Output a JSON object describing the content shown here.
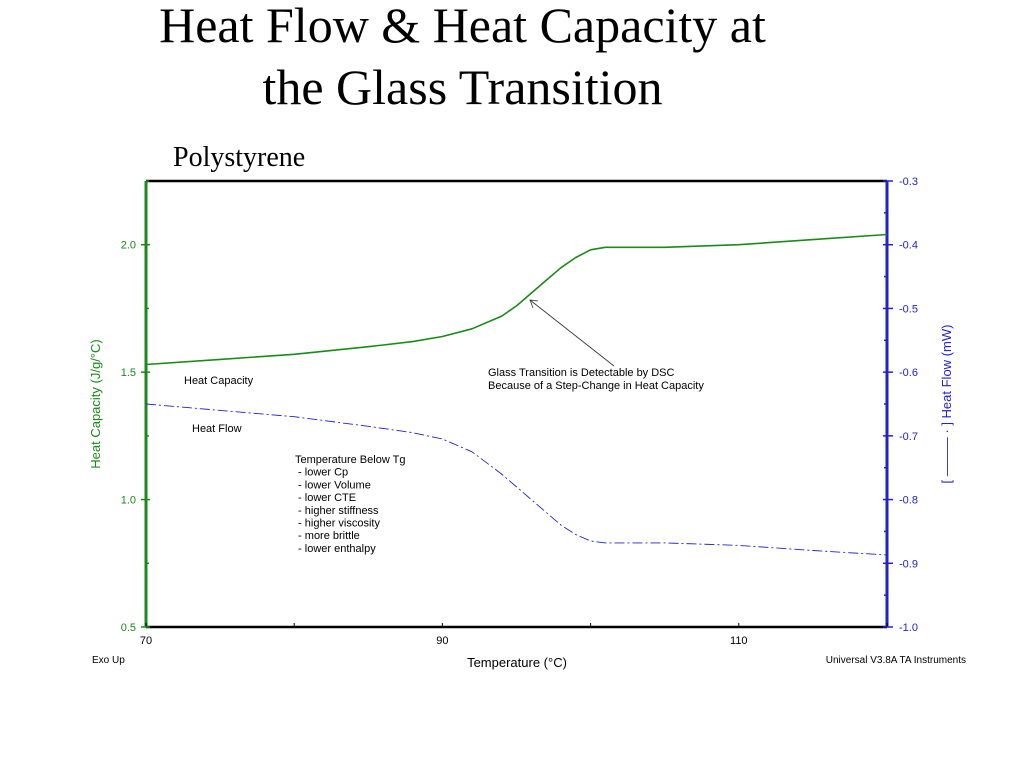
{
  "slide": {
    "title_line1": "Heat Flow & Heat Capacity at",
    "title_line2": "the Glass Transition"
  },
  "colors": {
    "heat_capacity": "#1a8a1a",
    "heat_flow": "#2222cc",
    "axis_frame": "#000000"
  },
  "chart_data": {
    "type": "line",
    "title": "Polystyrene",
    "xlabel": "Temperature (°C)",
    "ylabel_left": "Heat Capacity (J/g/°C)",
    "ylabel_right": "[ ——— · ] Heat Flow (mW)",
    "xlim": [
      70,
      120
    ],
    "ylim_left": [
      0.5,
      2.25
    ],
    "ylim_right": [
      -1.0,
      -0.3
    ],
    "x_ticks": [
      "70",
      "90",
      "110"
    ],
    "y_left_ticks": [
      "0.5",
      "1.0",
      "1.5",
      "2.0"
    ],
    "y_right_ticks": [
      "-0.3",
      "-0.4",
      "-0.5",
      "-0.6",
      "-0.7",
      "-0.8",
      "-0.9",
      "-1.0"
    ],
    "grid": false,
    "series": [
      {
        "name": "Heat Capacity",
        "axis": "left",
        "x": [
          70,
          75,
          80,
          85,
          88,
          90,
          92,
          94,
          95,
          96,
          97,
          98,
          99,
          100,
          101,
          102,
          105,
          110,
          115,
          120
        ],
        "y": [
          1.53,
          1.55,
          1.57,
          1.6,
          1.62,
          1.64,
          1.67,
          1.72,
          1.76,
          1.81,
          1.86,
          1.91,
          1.95,
          1.98,
          1.99,
          1.99,
          1.99,
          2.0,
          2.02,
          2.04
        ]
      },
      {
        "name": "Heat Flow",
        "axis": "right",
        "x": [
          70,
          75,
          80,
          85,
          88,
          90,
          92,
          94,
          96,
          97,
          98,
          99,
          100,
          101,
          102,
          105,
          110,
          115,
          120
        ],
        "y": [
          -0.65,
          -0.66,
          -0.67,
          -0.685,
          -0.695,
          -0.705,
          -0.725,
          -0.76,
          -0.8,
          -0.82,
          -0.84,
          -0.855,
          -0.865,
          -0.868,
          -0.868,
          -0.868,
          -0.872,
          -0.88,
          -0.887
        ]
      }
    ],
    "annotations": {
      "heat_capacity_label": "Heat Capacity",
      "heat_flow_label": "Heat Flow",
      "transition_line1": "Glass Transition is Detectable by DSC",
      "transition_line2": "Because of a Step-Change in Heat Capacity",
      "below_tg": [
        "Temperature Below Tg",
        " - lower Cp",
        " - lower Volume",
        " - lower CTE",
        " - higher stiffness",
        " - higher viscosity",
        " - more brittle",
        " - lower enthalpy"
      ],
      "exo_up": "Exo Up",
      "footer_right": "Universal V3.8A TA Instruments"
    }
  }
}
